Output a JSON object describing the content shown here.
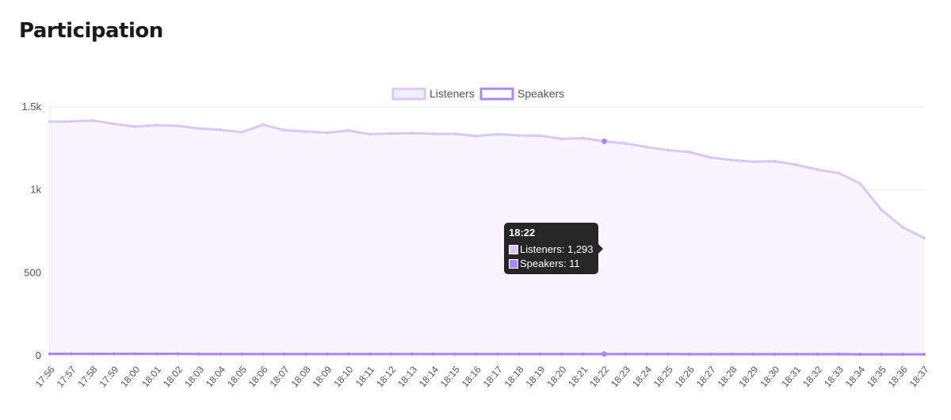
{
  "page": {
    "title": "Participation"
  },
  "colors": {
    "listeners_line": "#d8c8fb",
    "listeners_fill": "#f8f5ff",
    "listeners_legend_fill": "#f3eefe",
    "speakers_line": "#ac87fa",
    "speakers_legend_fill": "#ffffff",
    "grid": "#e8e8e8",
    "axis_text": "#555555",
    "tooltip_bg": "#1f1f1f"
  },
  "tooltip": {
    "title": "18:22",
    "rows": [
      {
        "text": "Listeners: 1,293",
        "color": "#d8c8fb"
      },
      {
        "text": "Speakers: 11",
        "color": "#ac87fa"
      }
    ]
  },
  "chart_data": {
    "type": "area",
    "title": "",
    "xlabel": "",
    "ylabel": "",
    "ylim": [
      0,
      1500
    ],
    "yticks": [
      "0",
      "500",
      "1k",
      "1.5k"
    ],
    "ytick_values": [
      0,
      500,
      1000,
      1500
    ],
    "grid": true,
    "legend_position": "top-center",
    "highlight_category": "18:22",
    "categories": [
      "17:56",
      "17:57",
      "17:58",
      "17:59",
      "18:00",
      "18:01",
      "18:02",
      "18:03",
      "18:04",
      "18:05",
      "18:06",
      "18:07",
      "18:08",
      "18:09",
      "18:10",
      "18:11",
      "18:12",
      "18:13",
      "18:14",
      "18:15",
      "18:16",
      "18:17",
      "18:18",
      "18:19",
      "18:20",
      "18:21",
      "18:22",
      "18:23",
      "18:24",
      "18:25",
      "18:26",
      "18:27",
      "18:28",
      "18:29",
      "18:30",
      "18:31",
      "18:32",
      "18:33",
      "18:34",
      "18:35",
      "18:36",
      "18:37"
    ],
    "series": [
      {
        "name": "Listeners",
        "values": [
          1412,
          1413,
          1418,
          1398,
          1382,
          1390,
          1386,
          1370,
          1362,
          1348,
          1393,
          1360,
          1352,
          1345,
          1358,
          1336,
          1340,
          1342,
          1338,
          1338,
          1325,
          1336,
          1328,
          1327,
          1308,
          1312,
          1293,
          1280,
          1258,
          1240,
          1228,
          1195,
          1180,
          1170,
          1172,
          1152,
          1122,
          1102,
          1038,
          880,
          775,
          710
        ]
      },
      {
        "name": "Speakers",
        "values": [
          12,
          12,
          12,
          12,
          12,
          12,
          12,
          11,
          11,
          11,
          11,
          11,
          11,
          11,
          11,
          11,
          11,
          11,
          11,
          11,
          11,
          11,
          11,
          11,
          11,
          11,
          11,
          11,
          11,
          11,
          10,
          10,
          10,
          10,
          10,
          10,
          10,
          10,
          9,
          9,
          9,
          9
        ]
      }
    ]
  }
}
